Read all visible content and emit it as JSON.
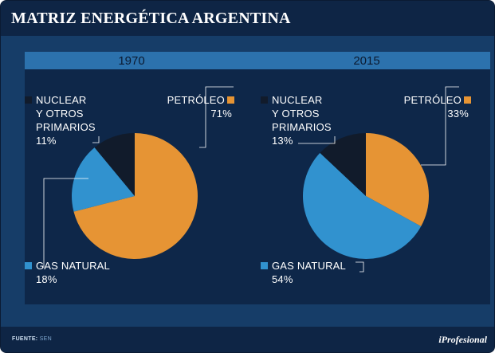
{
  "header": {
    "title": "MATRIZ ENERGÉTICA ARGENTINA"
  },
  "colors": {
    "petroleo": "#e69434",
    "gas": "#3192cf",
    "nuclear": "#111b2b",
    "panel": "#0e2749",
    "line": "#ffffff"
  },
  "chart_data": [
    {
      "type": "pie",
      "title": "1970",
      "categories": [
        "Petróleo",
        "Gas Natural",
        "Nuclear y otros primarios"
      ],
      "values": [
        71,
        18,
        11
      ],
      "unit": "%",
      "labels": {
        "petroleo": {
          "name": "PETRÓLEO",
          "value": "71%"
        },
        "nuclear": {
          "line1": "NUCLEAR",
          "line2": "Y OTROS",
          "line3": "PRIMARIOS",
          "value": "11%"
        },
        "gas": {
          "name": "GAS NATURAL",
          "value": "18%"
        }
      }
    },
    {
      "type": "pie",
      "title": "2015",
      "categories": [
        "Petróleo",
        "Gas Natural",
        "Nuclear y otros primarios"
      ],
      "values": [
        33,
        54,
        13
      ],
      "unit": "%",
      "labels": {
        "petroleo": {
          "name": "PETRÓLEO",
          "value": "33%"
        },
        "nuclear": {
          "line1": "NUCLEAR",
          "line2": "Y OTROS",
          "line3": "PRIMARIOS",
          "value": "13%"
        },
        "gas": {
          "name": "GAS NATURAL",
          "value": "54%"
        }
      }
    }
  ],
  "footer": {
    "source_label": "FUENTE:",
    "source_value": "SEN",
    "brand": "iProfesional"
  }
}
